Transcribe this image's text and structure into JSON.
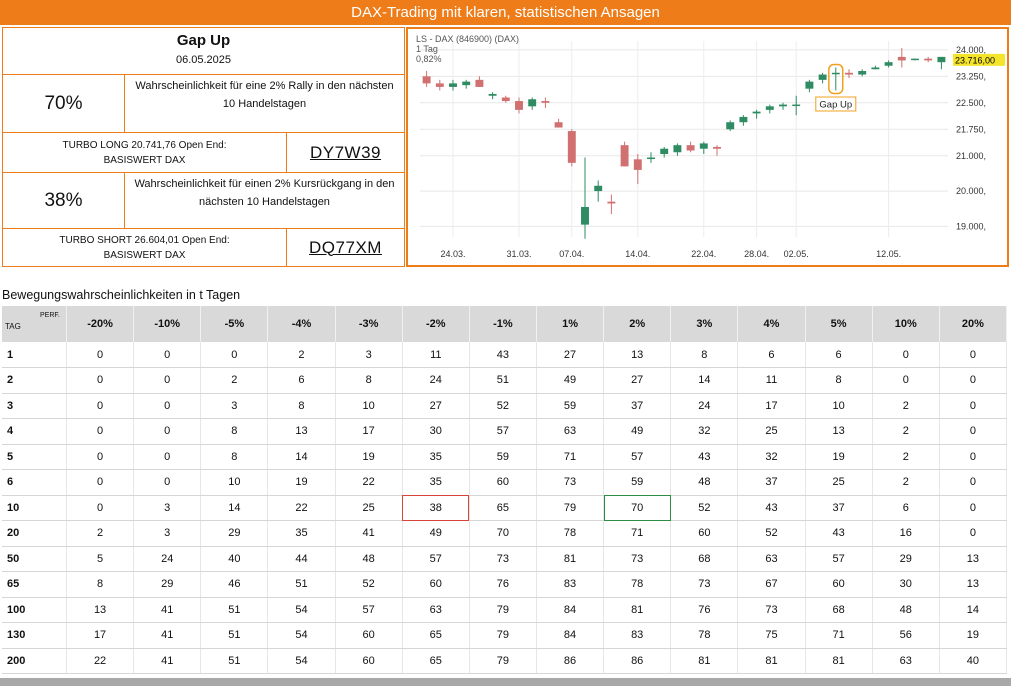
{
  "banner_title": "DAX-Trading mit klaren, statistischen Ansagen",
  "info": {
    "heading": "Gap Up",
    "date": "06.05.2025",
    "rally_pct": "70%",
    "rally_desc_l1": "Wahrscheinlichkeit für eine 2% Rally in den nächsten",
    "rally_desc_l2": "10 Handelstagen",
    "long_text_l1": "TURBO LONG 20.741,76 Open End:",
    "long_text_l2": "BASISWERT DAX",
    "long_code": "DY7W39",
    "drop_pct": "38%",
    "drop_desc_l1": "Wahrscheinlichkeit für einen 2% Kursrückgang in den",
    "drop_desc_l2": "nächsten 10 Handelstagen",
    "short_text_l1": "TURBO SHORT 26.604,01 Open End:",
    "short_text_l2": "BASISWERT DAX",
    "short_code": "DQ77XM"
  },
  "chart": {
    "header_l1": "LS - DAX (846900) (DAX)",
    "header_l2": "1 Tag",
    "header_l3": "0,82%",
    "current_label": "23.716,00",
    "annotation": "Gap Up",
    "colors": {
      "up": "#2e8b62",
      "down": "#d07070",
      "highlight": "#f0a020",
      "current_bg": "#f5e52a"
    }
  },
  "chart_data": {
    "type": "candlestick",
    "y_ticks": [
      19000,
      20000,
      21000,
      21750,
      22500,
      23250,
      24000
    ],
    "y_tick_labels": [
      "19.000,",
      "20.000,",
      "21.000,",
      "21.750,",
      "22.500,",
      "23.250,",
      "24.000,"
    ],
    "x_tick_labels": [
      "24.03.",
      "31.03.",
      "07.04.",
      "14.04.",
      "22.04.",
      "28.04.",
      "02.05.",
      "12.05."
    ],
    "x_tick_index": [
      2,
      7,
      11,
      16,
      21,
      25,
      28,
      35
    ],
    "ylim": [
      18700,
      24250
    ],
    "candles": [
      {
        "o": 23250,
        "h": 23400,
        "l": 22950,
        "c": 23050
      },
      {
        "o": 23050,
        "h": 23150,
        "l": 22850,
        "c": 22950
      },
      {
        "o": 22950,
        "h": 23150,
        "l": 22850,
        "c": 23050
      },
      {
        "o": 23000,
        "h": 23150,
        "l": 22900,
        "c": 23100
      },
      {
        "o": 23150,
        "h": 23250,
        "l": 22950,
        "c": 22950
      },
      {
        "o": 22700,
        "h": 22800,
        "l": 22600,
        "c": 22750
      },
      {
        "o": 22650,
        "h": 22700,
        "l": 22500,
        "c": 22550
      },
      {
        "o": 22550,
        "h": 22650,
        "l": 22200,
        "c": 22300
      },
      {
        "o": 22400,
        "h": 22650,
        "l": 22300,
        "c": 22600
      },
      {
        "o": 22550,
        "h": 22650,
        "l": 22350,
        "c": 22500
      },
      {
        "o": 21950,
        "h": 22050,
        "l": 21800,
        "c": 21800
      },
      {
        "o": 21700,
        "h": 21750,
        "l": 20700,
        "c": 20800
      },
      {
        "o": 19050,
        "h": 20950,
        "l": 18650,
        "c": 19550
      },
      {
        "o": 20000,
        "h": 20300,
        "l": 19700,
        "c": 20150
      },
      {
        "o": 19700,
        "h": 19900,
        "l": 19350,
        "c": 19650
      },
      {
        "o": 21300,
        "h": 21400,
        "l": 20700,
        "c": 20700
      },
      {
        "o": 20900,
        "h": 21050,
        "l": 20200,
        "c": 20600
      },
      {
        "o": 20950,
        "h": 21100,
        "l": 20800,
        "c": 20950
      },
      {
        "o": 21050,
        "h": 21250,
        "l": 20950,
        "c": 21200
      },
      {
        "o": 21100,
        "h": 21350,
        "l": 21000,
        "c": 21300
      },
      {
        "o": 21300,
        "h": 21400,
        "l": 21100,
        "c": 21150
      },
      {
        "o": 21200,
        "h": 21400,
        "l": 21050,
        "c": 21350
      },
      {
        "o": 21250,
        "h": 21300,
        "l": 21000,
        "c": 21200
      },
      {
        "o": 21750,
        "h": 22000,
        "l": 21700,
        "c": 21950
      },
      {
        "o": 21950,
        "h": 22150,
        "l": 21850,
        "c": 22100
      },
      {
        "o": 22200,
        "h": 22300,
        "l": 22050,
        "c": 22250
      },
      {
        "o": 22300,
        "h": 22450,
        "l": 22200,
        "c": 22400
      },
      {
        "o": 22400,
        "h": 22500,
        "l": 22300,
        "c": 22450
      },
      {
        "o": 22450,
        "h": 22700,
        "l": 22150,
        "c": 22450
      },
      {
        "o": 22900,
        "h": 23150,
        "l": 22800,
        "c": 23100
      },
      {
        "o": 23150,
        "h": 23350,
        "l": 23050,
        "c": 23300
      },
      {
        "o": 23350,
        "h": 23500,
        "l": 22850,
        "c": 23350
      },
      {
        "o": 23350,
        "h": 23450,
        "l": 23200,
        "c": 23300
      },
      {
        "o": 23300,
        "h": 23450,
        "l": 23250,
        "c": 23400
      },
      {
        "o": 23450,
        "h": 23550,
        "l": 23450,
        "c": 23500
      },
      {
        "o": 23550,
        "h": 23700,
        "l": 23500,
        "c": 23650
      },
      {
        "o": 23800,
        "h": 24050,
        "l": 23500,
        "c": 23700
      },
      {
        "o": 23750,
        "h": 23750,
        "l": 23700,
        "c": 23750
      },
      {
        "o": 23750,
        "h": 23800,
        "l": 23650,
        "c": 23700
      },
      {
        "o": 23650,
        "h": 23800,
        "l": 23450,
        "c": 23800
      }
    ],
    "gap_up_index": 31
  },
  "table": {
    "title": "Bewegungswahrscheinlichkeiten in t Tagen",
    "perf_label": "PERF.",
    "tag_label": "TAG",
    "columns": [
      "-20%",
      "-10%",
      "-5%",
      "-4%",
      "-3%",
      "-2%",
      "-1%",
      "1%",
      "2%",
      "3%",
      "4%",
      "5%",
      "10%",
      "20%"
    ],
    "rows": [
      {
        "tag": "1",
        "values": [
          "0",
          "0",
          "0",
          "2",
          "3",
          "11",
          "43",
          "27",
          "13",
          "8",
          "6",
          "6",
          "0",
          "0"
        ]
      },
      {
        "tag": "2",
        "values": [
          "0",
          "0",
          "2",
          "6",
          "8",
          "24",
          "51",
          "49",
          "27",
          "14",
          "11",
          "8",
          "0",
          "0"
        ]
      },
      {
        "tag": "3",
        "values": [
          "0",
          "0",
          "3",
          "8",
          "10",
          "27",
          "52",
          "59",
          "37",
          "24",
          "17",
          "10",
          "2",
          "0"
        ]
      },
      {
        "tag": "4",
        "values": [
          "0",
          "0",
          "8",
          "13",
          "17",
          "30",
          "57",
          "63",
          "49",
          "32",
          "25",
          "13",
          "2",
          "0"
        ]
      },
      {
        "tag": "5",
        "values": [
          "0",
          "0",
          "8",
          "14",
          "19",
          "35",
          "59",
          "71",
          "57",
          "43",
          "32",
          "19",
          "2",
          "0"
        ]
      },
      {
        "tag": "6",
        "values": [
          "0",
          "0",
          "10",
          "19",
          "22",
          "35",
          "60",
          "73",
          "59",
          "48",
          "37",
          "25",
          "2",
          "0"
        ]
      },
      {
        "tag": "10",
        "values": [
          "0",
          "3",
          "14",
          "22",
          "25",
          "38",
          "65",
          "79",
          "70",
          "52",
          "43",
          "37",
          "6",
          "0"
        ]
      },
      {
        "tag": "20",
        "values": [
          "2",
          "3",
          "29",
          "35",
          "41",
          "49",
          "70",
          "78",
          "71",
          "60",
          "52",
          "43",
          "16",
          "0"
        ]
      },
      {
        "tag": "50",
        "values": [
          "5",
          "24",
          "40",
          "44",
          "48",
          "57",
          "73",
          "81",
          "73",
          "68",
          "63",
          "57",
          "29",
          "13"
        ]
      },
      {
        "tag": "65",
        "values": [
          "8",
          "29",
          "46",
          "51",
          "52",
          "60",
          "76",
          "83",
          "78",
          "73",
          "67",
          "60",
          "30",
          "13"
        ]
      },
      {
        "tag": "100",
        "values": [
          "13",
          "41",
          "51",
          "54",
          "57",
          "63",
          "79",
          "84",
          "81",
          "76",
          "73",
          "68",
          "48",
          "14"
        ]
      },
      {
        "tag": "130",
        "values": [
          "17",
          "41",
          "51",
          "54",
          "60",
          "65",
          "79",
          "84",
          "83",
          "78",
          "75",
          "71",
          "56",
          "19"
        ]
      },
      {
        "tag": "200",
        "values": [
          "22",
          "41",
          "51",
          "54",
          "60",
          "65",
          "79",
          "86",
          "86",
          "81",
          "81",
          "81",
          "63",
          "40"
        ]
      }
    ],
    "highlight_red": {
      "row": 6,
      "col": 5
    },
    "highlight_green": {
      "row": 6,
      "col": 8
    }
  }
}
